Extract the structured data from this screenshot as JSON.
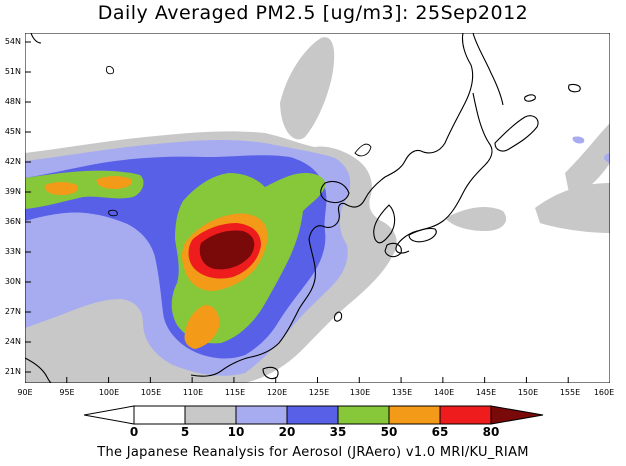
{
  "title": "Daily Averaged PM2.5 [ug/m3]: 25Sep2012",
  "lat_labels": [
    "54N",
    "51N",
    "48N",
    "45N",
    "42N",
    "39N",
    "36N",
    "33N",
    "30N",
    "27N",
    "24N",
    "21N"
  ],
  "lon_labels": [
    "90E",
    "95E",
    "100E",
    "105E",
    "110E",
    "115E",
    "120E",
    "125E",
    "130E",
    "135E",
    "140E",
    "145E",
    "150E",
    "155E",
    "160E"
  ],
  "colorbar": {
    "labels": [
      "0",
      "5",
      "10",
      "20",
      "35",
      "50",
      "65",
      "80"
    ],
    "colors": [
      "#ffffff",
      "#c8c8c8",
      "#a7acf0",
      "#5860e8",
      "#86c83a",
      "#f39a18",
      "#ee1c1c",
      "#7a0a0a"
    ]
  },
  "footer": "The Japanese Reanalysis for Aerosol (JRAero) v1.0 MRI/KU_RIAM"
}
